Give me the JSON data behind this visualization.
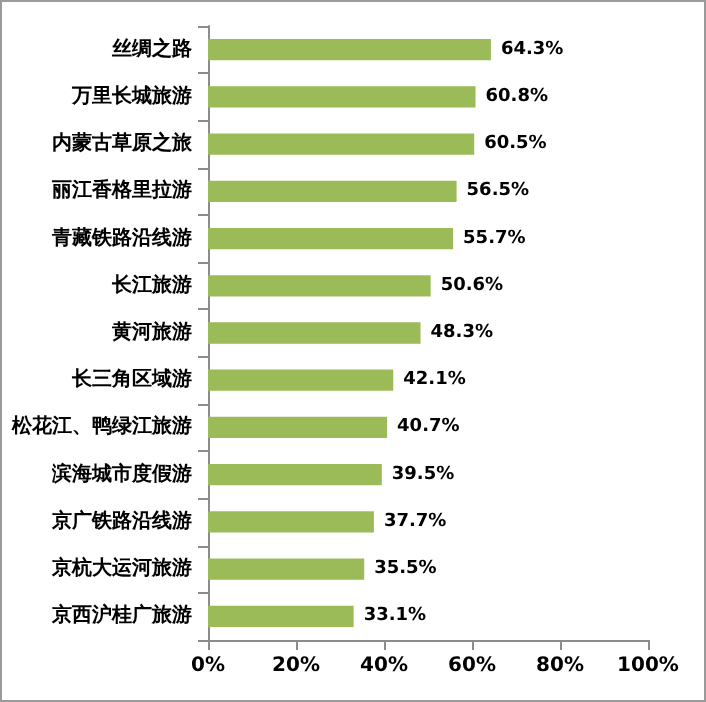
{
  "chart_data": {
    "type": "bar",
    "orientation": "horizontal",
    "categories": [
      "丝绸之路",
      "万里长城旅游",
      "内蒙古草原之旅",
      "丽江香格里拉游",
      "青藏铁路沿线游",
      "长江旅游",
      "黄河旅游",
      "长三角区域游",
      "松花江、鸭绿江旅游",
      "滨海城市度假游",
      "京广铁路沿线游",
      "京杭大运河旅游",
      "京西沪桂广旅游"
    ],
    "values": [
      64.3,
      60.8,
      60.5,
      56.5,
      55.7,
      50.6,
      48.3,
      42.1,
      40.7,
      39.5,
      37.7,
      35.5,
      33.1
    ],
    "value_labels": [
      "64.3%",
      "60.8%",
      "60.5%",
      "56.5%",
      "55.7%",
      "50.6%",
      "48.3%",
      "42.1%",
      "40.7%",
      "39.5%",
      "37.7%",
      "35.5%",
      "33.1%"
    ],
    "color": "#9bbb59",
    "xlim": [
      0,
      100
    ],
    "xticks": [
      {
        "value": 0,
        "label": "0%"
      },
      {
        "value": 20,
        "label": "20%"
      },
      {
        "value": 40,
        "label": "40%"
      },
      {
        "value": 60,
        "label": "60%"
      },
      {
        "value": 80,
        "label": "80%"
      },
      {
        "value": 100,
        "label": "100%"
      }
    ],
    "grid": false
  }
}
